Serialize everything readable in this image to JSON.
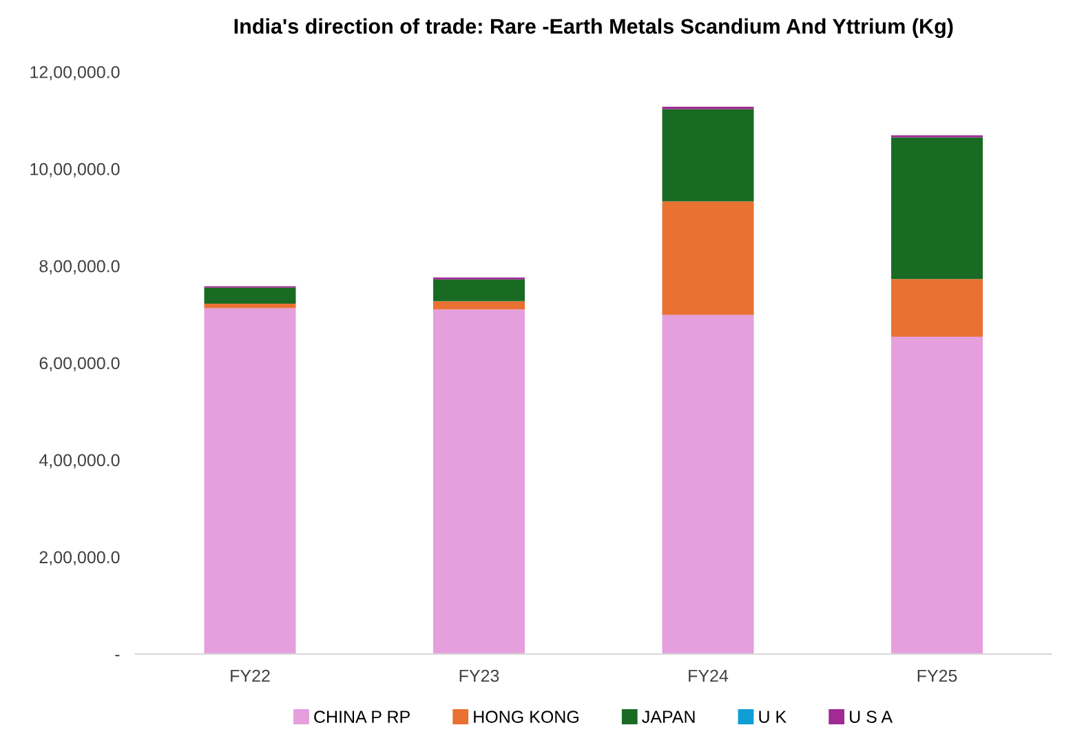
{
  "chart_data": {
    "type": "bar",
    "title": "India's direction of trade: Rare -Earth Metals Scandium And Yttrium (Kg)",
    "categories": [
      "FY22",
      "FY23",
      "FY24",
      "FY25"
    ],
    "stacked": true,
    "series": [
      {
        "name": "CHINA P RP",
        "color": "#e49fdc",
        "values": [
          713000,
          710000,
          699000,
          654000
        ]
      },
      {
        "name": "HONG KONG",
        "color": "#e97132",
        "values": [
          9000,
          17000,
          234000,
          119000
        ]
      },
      {
        "name": "JAPAN",
        "color": "#196b24",
        "values": [
          33000,
          45000,
          190000,
          292000
        ]
      },
      {
        "name": "U K",
        "color": "#0f9ed5",
        "values": [
          null,
          null,
          null,
          null
        ]
      },
      {
        "name": "U S A",
        "color": "#a02b93",
        "values": [
          3000,
          4000,
          5000,
          4000
        ]
      }
    ],
    "ylim": [
      0,
      1200000
    ],
    "yticks": [
      {
        "value": 0,
        "label": "-"
      },
      {
        "value": 200000,
        "label": "2,00,000.0"
      },
      {
        "value": 400000,
        "label": "4,00,000.0"
      },
      {
        "value": 600000,
        "label": "6,00,000.0"
      },
      {
        "value": 800000,
        "label": "8,00,000.0"
      },
      {
        "value": 1000000,
        "label": "10,00,000.0"
      },
      {
        "value": 1200000,
        "label": "12,00,000.0"
      }
    ],
    "grid": false,
    "legend": "bottom"
  }
}
